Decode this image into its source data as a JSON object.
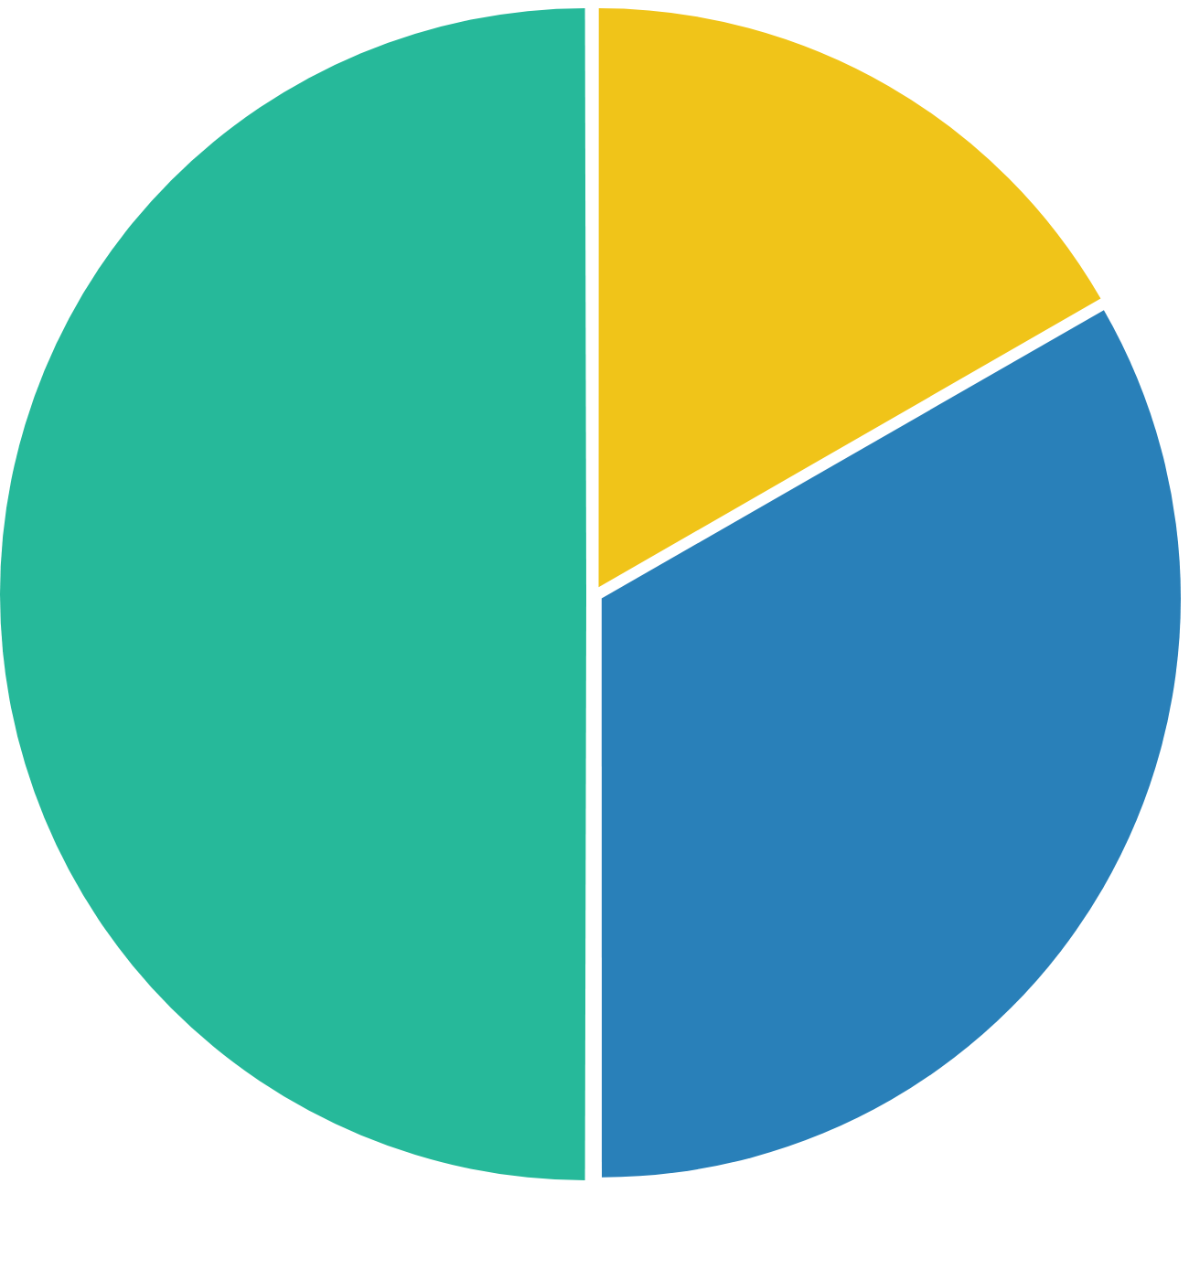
{
  "chart_data": {
    "type": "pie",
    "categories": [
      null,
      null,
      null
    ],
    "values": [
      16.7,
      33.3,
      50
    ],
    "colors": [
      "#f0c419",
      "#2980b9",
      "#26b99a"
    ]
  }
}
